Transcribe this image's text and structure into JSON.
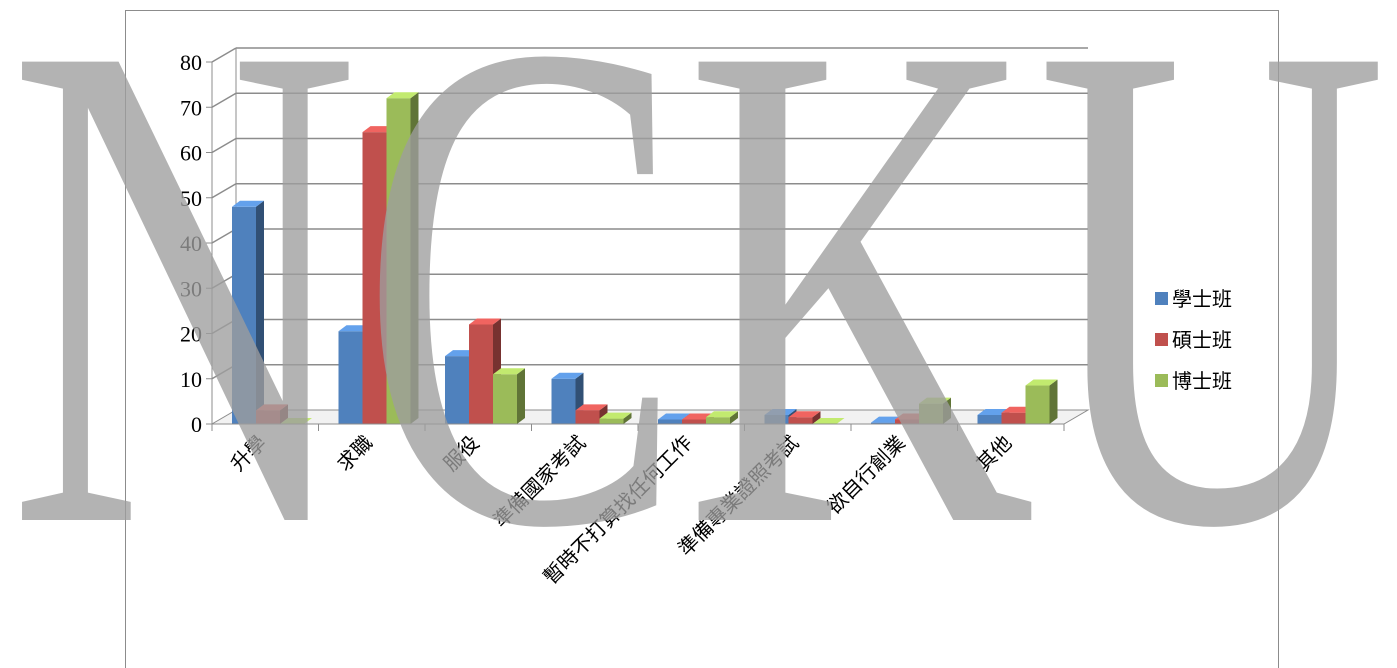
{
  "watermark": "NCKU",
  "chart_data": {
    "type": "bar",
    "style": "3d-clustered-column",
    "categories": [
      "升學",
      "求職",
      "服役",
      "準備國家考試",
      "暫時不打算找任何工作",
      "準備專業證照考試",
      "欲自行創業",
      "其他"
    ],
    "series": [
      {
        "name": "學士班",
        "color": "#4F81BD",
        "values": [
          48,
          20.5,
          15,
          10,
          1,
          2,
          0.3,
          2
        ]
      },
      {
        "name": "碩士班",
        "color": "#C0504D",
        "values": [
          3,
          64.5,
          22,
          3,
          1,
          1.5,
          1,
          2.5
        ]
      },
      {
        "name": "博士班",
        "color": "#9BBB59",
        "values": [
          0,
          72,
          11,
          1.2,
          1.5,
          0,
          4.5,
          8.5
        ]
      }
    ],
    "ylim": [
      0,
      80
    ],
    "yticks": [
      "0",
      "10",
      "20",
      "30",
      "40",
      "50",
      "60",
      "70",
      "80"
    ],
    "grid": true,
    "legend": "right"
  }
}
